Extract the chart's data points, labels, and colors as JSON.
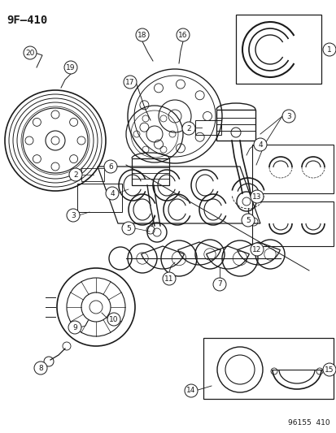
{
  "title": "9F–410",
  "footer": "96155  410",
  "bg_color": "#ffffff",
  "line_color": "#1a1a1a",
  "fig_width": 4.14,
  "fig_height": 5.33,
  "dpi": 100
}
